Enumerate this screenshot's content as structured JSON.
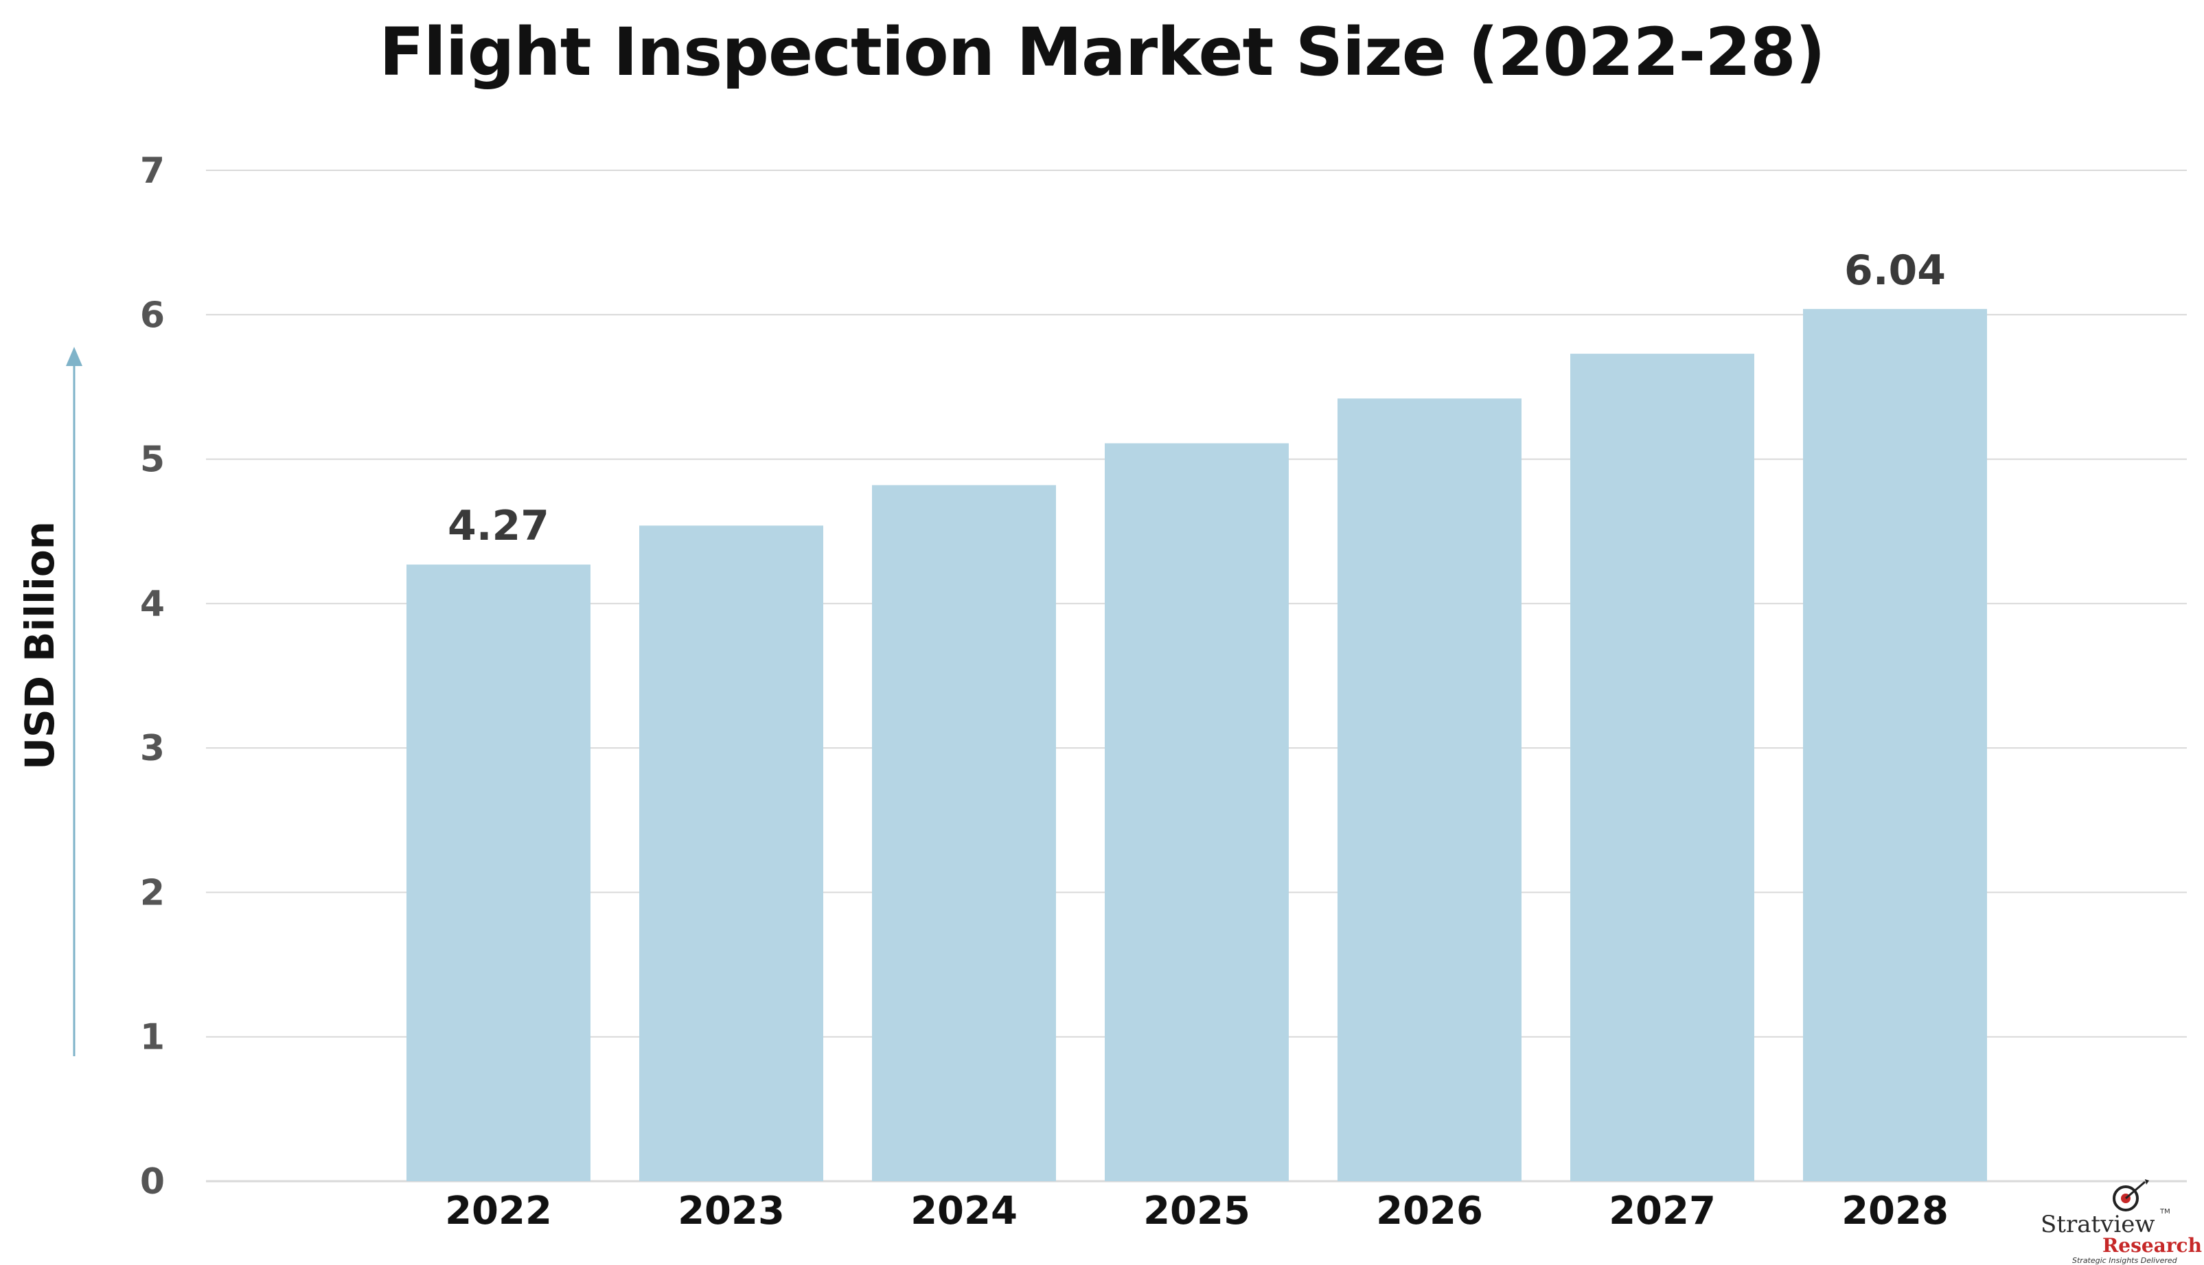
{
  "chart_data": {
    "type": "bar",
    "title": "Flight Inspection Market Size (2022-28)",
    "xlabel": "",
    "ylabel": "USD Billion",
    "categories": [
      "2022",
      "2023",
      "2024",
      "2025",
      "2026",
      "2027",
      "2028"
    ],
    "values": [
      4.27,
      4.54,
      4.82,
      5.11,
      5.42,
      5.73,
      6.04
    ],
    "data_labels": [
      {
        "category": "2022",
        "text": "4.27"
      },
      {
        "category": "2028",
        "text": "6.04"
      }
    ],
    "ylim": [
      0,
      7
    ],
    "yticks": [
      "0",
      "1",
      "2",
      "3",
      "4",
      "5",
      "6",
      "7"
    ],
    "grid": true,
    "legend": "none",
    "colors": {
      "bar": "#b5d5e4",
      "grid": "#d9d9d9",
      "tick_text": "#555555",
      "category_text": "#111111",
      "arrow": "#7fb3c9"
    }
  },
  "logo": {
    "brand_a": "Stratview",
    "brand_b": "Research",
    "tagline": "Strategic Insights Delivered",
    "tm": "TM"
  }
}
